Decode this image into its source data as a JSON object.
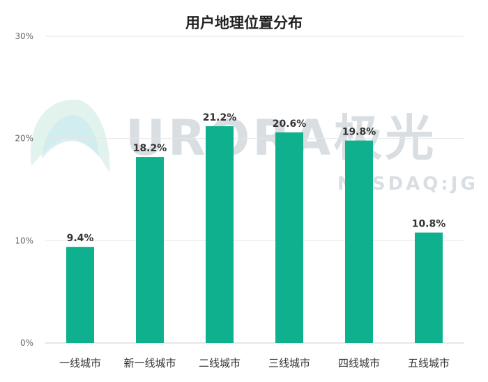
{
  "chart_data": {
    "type": "bar",
    "title": "用户地理位置分布",
    "categories": [
      "一线城市",
      "新一线城市",
      "二线城市",
      "三线城市",
      "四线城市",
      "五线城市"
    ],
    "values": [
      9.4,
      18.2,
      21.2,
      20.6,
      19.8,
      10.8
    ],
    "value_labels": [
      "9.4%",
      "18.2%",
      "21.2%",
      "20.6%",
      "19.8%",
      "10.8%"
    ],
    "ylim": [
      0,
      30
    ],
    "yticks": [
      0,
      10,
      20,
      30
    ],
    "ytick_labels": [
      "0%",
      "10%",
      "20%",
      "30%"
    ],
    "grid": true,
    "bar_color": "#0fb08e",
    "xlabel": "",
    "ylabel": ""
  },
  "watermark": {
    "brand_text": "URORA极光",
    "sub_text": "NASDAQ:JG"
  }
}
